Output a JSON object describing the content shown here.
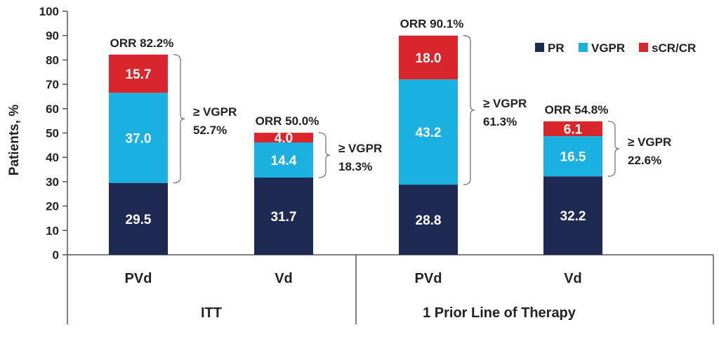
{
  "chart_data": {
    "type": "bar",
    "stacked": true,
    "ylabel": "Patients, %",
    "ylim": [
      0,
      100
    ],
    "yticks": [
      "0",
      "10",
      "20",
      "30",
      "40",
      "50",
      "60",
      "70",
      "80",
      "90",
      "100"
    ],
    "grid": false,
    "legend_position": "top-right",
    "categories": [
      "PVd",
      "Vd",
      "PVd",
      "Vd"
    ],
    "groups": [
      {
        "label": "ITT",
        "categories": [
          0,
          1
        ]
      },
      {
        "label": "1 Prior Line of Therapy",
        "categories": [
          2,
          3
        ]
      }
    ],
    "series": [
      {
        "name": "PR",
        "color": "#1f2a52",
        "values": [
          29.5,
          31.7,
          28.8,
          32.2
        ],
        "labels": [
          "29.5",
          "31.7",
          "28.8",
          "32.2"
        ]
      },
      {
        "name": "VGPR",
        "color": "#1ab0e0",
        "values": [
          37.0,
          14.4,
          43.2,
          16.5
        ],
        "labels": [
          "37.0",
          "14.4",
          "43.2",
          "16.5"
        ]
      },
      {
        "name": "sCR/CR",
        "color": "#d9262c",
        "values": [
          15.7,
          4.0,
          18.0,
          6.1
        ],
        "labels": [
          "15.7",
          "4.0",
          "18.0",
          "6.1"
        ]
      }
    ],
    "annotations": {
      "orr": [
        "ORR 82.2%",
        "ORR 50.0%",
        "ORR 90.1%",
        "ORR 54.8%"
      ],
      "vgpr_header": "≥ VGPR",
      "vgpr": [
        "52.7%",
        "18.3%",
        "61.3%",
        "22.6%"
      ]
    }
  }
}
